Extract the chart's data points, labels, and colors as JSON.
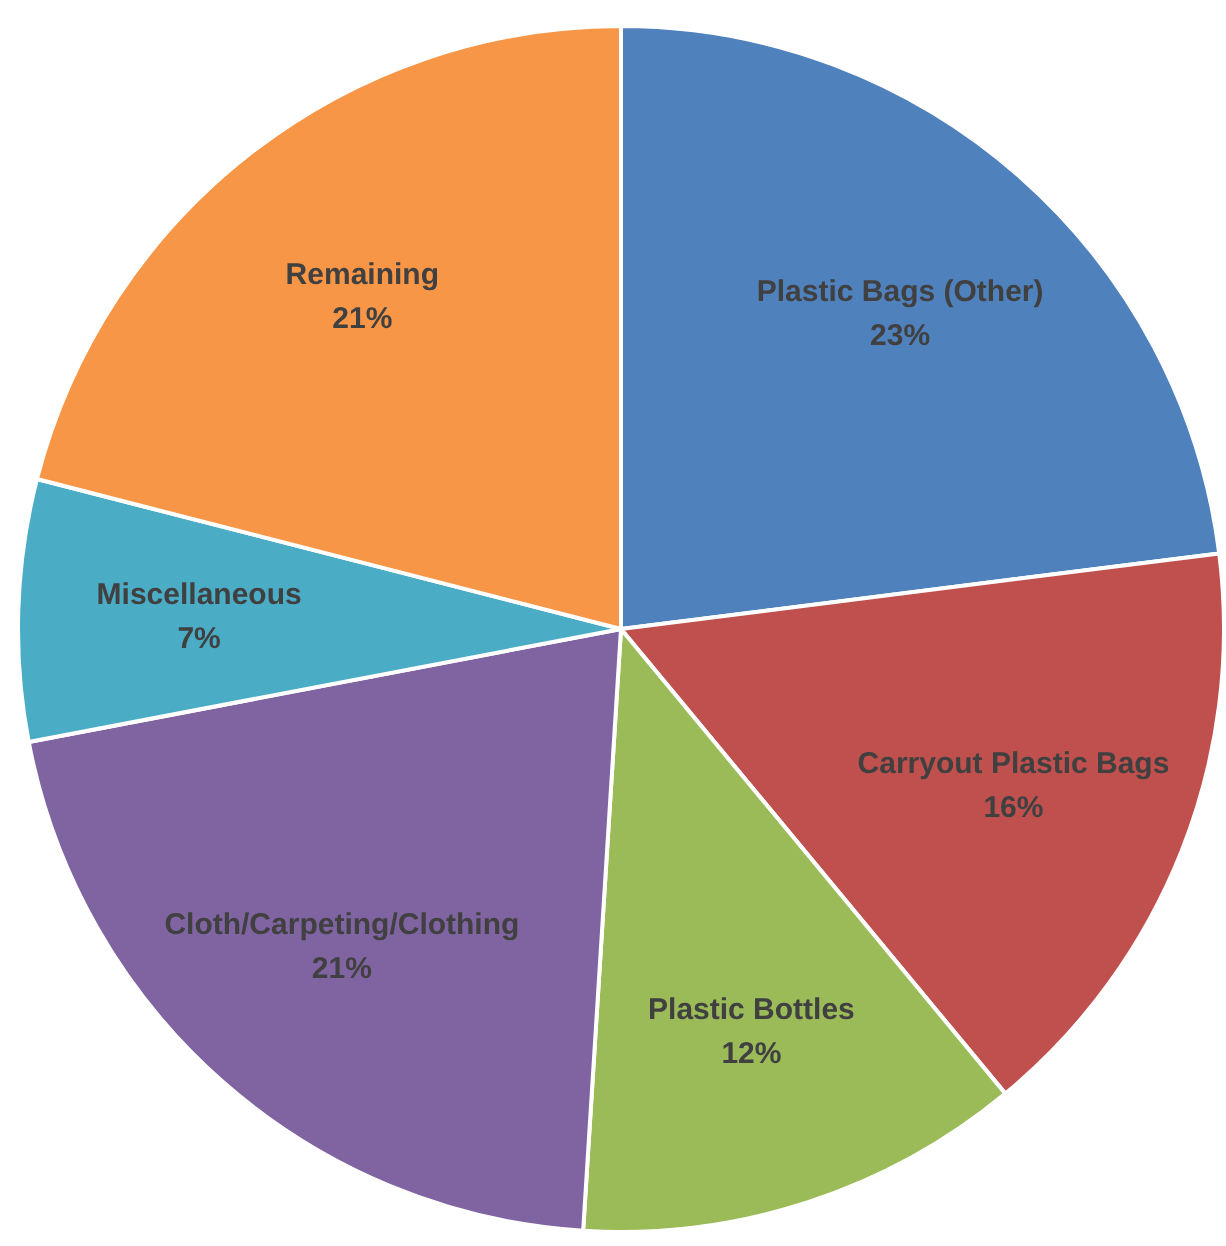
{
  "chart_data": {
    "type": "pie",
    "categories": [
      "Plastic Bags (Other)",
      "Carryout Plastic Bags",
      "Plastic Bottles",
      "Cloth/Carpeting/Clothing",
      "Miscellaneous",
      "Remaining"
    ],
    "values": [
      23,
      16,
      12,
      21,
      7,
      21
    ],
    "value_labels": [
      "23%",
      "16%",
      "12%",
      "21%",
      "7%",
      "21%"
    ],
    "colors": [
      "#4f81bd",
      "#c0504d",
      "#9bbb59",
      "#8064a2",
      "#4bacc6",
      "#f79646"
    ],
    "legend": false
  }
}
